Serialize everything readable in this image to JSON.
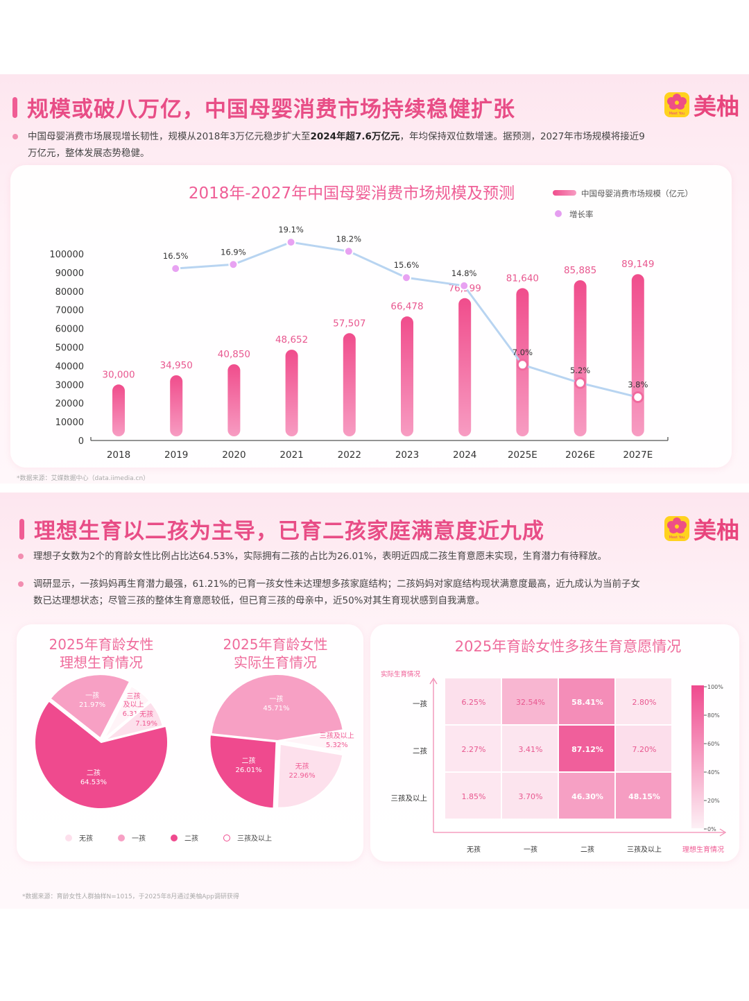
{
  "section1": {
    "title": "规模或破八万亿，中国母婴消费市场持续稳健扩张",
    "logo_text": "美柚",
    "logo_small": "Meet You",
    "bullet_pre": "中国母婴消费市场展现增长韧性，规模从2018年3万亿元稳步扩大至",
    "bullet_bold": "2024年超7.6万亿元",
    "bullet_post": "，年均保持双位数增速。据预测，2027年市场规模将接近9万亿元，整体发展态势稳健。",
    "source": "*数据来源：艾媒数据中心（data.iimedia.cn）"
  },
  "section2": {
    "title": "理想生育以二孩为主导，已育二孩家庭满意度近九成",
    "logo_text": "美柚",
    "logo_small": "Meet You",
    "bullet1": "理想子女数为2个的育龄女性比例占比达64.53%，实际拥有二孩的占比为26.01%，表明近四成二孩生育意愿未实现，生育潜力有待释放。",
    "bullet2": "调研显示，一孩妈妈再生育潜力最强，61.21%的已育一孩女性未达理想多孩家庭结构；二孩妈妈对家庭结构现状满意度最高，近九成认为当前子女数已达理想状态；尽管三孩的整体生育意愿较低，但已育三孩的母亲中，近50%对其生育现状感到自我满意。",
    "source": "*数据来源：育龄女性人群抽样N=1015，于2025年8月通过美柚App调研获得",
    "pie_legend": [
      "无孩",
      "一孩",
      "二孩",
      "三孩及以上"
    ]
  },
  "chart_data": [
    {
      "type": "bar",
      "title": "2018年-2027年中国母婴消费市场规模及预测",
      "categories": [
        "2018",
        "2019",
        "2020",
        "2021",
        "2022",
        "2023",
        "2024",
        "2025E",
        "2026E",
        "2027E"
      ],
      "series": [
        {
          "name": "中国母婴消费市场规模（亿元）",
          "values": [
            30000,
            34950,
            40850,
            48652,
            57507,
            66478,
            76299,
            81640,
            85885,
            89149
          ],
          "labels": [
            "30,000",
            "34,950",
            "40,850",
            "48,652",
            "57,507",
            "66,478",
            "76,299",
            "81,640",
            "85,885",
            "89,149"
          ]
        },
        {
          "name": "增长率",
          "type": "line",
          "values": [
            null,
            16.5,
            16.9,
            19.1,
            18.2,
            15.6,
            14.8,
            7.0,
            5.2,
            3.8
          ],
          "labels": [
            "",
            "16.5%",
            "16.9%",
            "19.1%",
            "18.2%",
            "15.6%",
            "14.8%",
            "7.0%",
            "5.2%",
            "3.8%"
          ]
        }
      ],
      "ylim": [
        0,
        100000
      ],
      "yticks": [
        "0",
        "10000",
        "20000",
        "30000",
        "40000",
        "50000",
        "60000",
        "70000",
        "80000",
        "90000",
        "100000"
      ],
      "legend": "top-right"
    },
    {
      "type": "pie",
      "title": "2025年育龄女性理想生育情况",
      "title_lines": [
        "2025年育龄女性",
        "理想生育情况"
      ],
      "slices": [
        {
          "name": "二孩",
          "value": 64.53,
          "label": "64.53%"
        },
        {
          "name": "一孩",
          "value": 21.97,
          "label": "21.97%"
        },
        {
          "name": "三孩及以上",
          "value": 6.31,
          "label": "6.31%",
          "short": [
            "三孩",
            "及以上"
          ]
        },
        {
          "name": "无孩",
          "value": 7.19,
          "label": "7.19%"
        }
      ]
    },
    {
      "type": "pie",
      "title": "2025年育龄女性实际生育情况",
      "title_lines": [
        "2025年育龄女性",
        "实际生育情况"
      ],
      "slices": [
        {
          "name": "一孩",
          "value": 45.71,
          "label": "45.71%"
        },
        {
          "name": "三孩及以上",
          "value": 5.32,
          "label": "5.32%"
        },
        {
          "name": "无孩",
          "value": 22.96,
          "label": "22.96%"
        },
        {
          "name": "二孩",
          "value": 26.01,
          "label": "26.01%"
        }
      ]
    },
    {
      "type": "heatmap",
      "title": "2025年育龄女性多孩生育意愿情况",
      "ylabel": "实际生育情况",
      "xlabel": "理想生育情况",
      "rows": [
        "一孩",
        "二孩",
        "三孩及以上"
      ],
      "cols": [
        "无孩",
        "一孩",
        "二孩",
        "三孩及以上"
      ],
      "values": [
        [
          6.25,
          32.54,
          58.41,
          2.8
        ],
        [
          2.27,
          3.41,
          87.12,
          7.2
        ],
        [
          1.85,
          3.7,
          46.3,
          48.15
        ]
      ],
      "labels": [
        [
          "6.25%",
          "32.54%",
          "58.41%",
          "2.80%"
        ],
        [
          "2.27%",
          "3.41%",
          "87.12%",
          "7.20%"
        ],
        [
          "1.85%",
          "3.70%",
          "46.30%",
          "48.15%"
        ]
      ],
      "scale_ticks": [
        "100%",
        "80%",
        "60%",
        "40%",
        "20%",
        "0%"
      ]
    }
  ]
}
